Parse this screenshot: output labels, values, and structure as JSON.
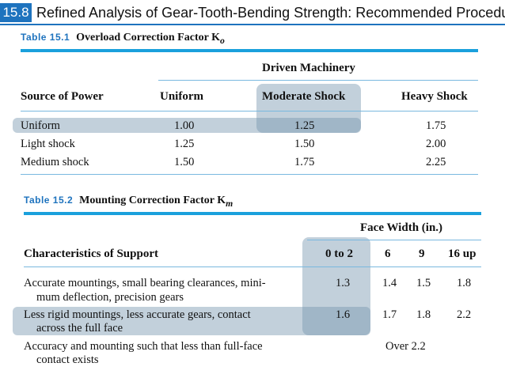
{
  "header": {
    "section_number": "15.8",
    "title": "Refined Analysis of Gear-Tooth-Bending Strength: Recommended Procedure"
  },
  "table1": {
    "label": "Table 15.1",
    "title": "Overload Correction Factor K",
    "title_sub": "o",
    "group_header": "Driven Machinery",
    "row_header": "Source of Power",
    "columns": [
      "Uniform",
      "Moderate Shock",
      "Heavy Shock"
    ],
    "rows": [
      {
        "source": "Uniform",
        "values": [
          "1.00",
          "1.25",
          "1.75"
        ]
      },
      {
        "source": "Light shock",
        "values": [
          "1.25",
          "1.50",
          "2.00"
        ]
      },
      {
        "source": "Medium shock",
        "values": [
          "1.50",
          "1.75",
          "2.25"
        ]
      }
    ]
  },
  "table2": {
    "label": "Table 15.2",
    "title": "Mounting Correction Factor K",
    "title_sub": "m",
    "group_header": "Face Width (in.)",
    "row_header": "Characteristics of Support",
    "columns": [
      "0 to 2",
      "6",
      "9",
      "16 up"
    ],
    "rows": [
      {
        "line1": "Accurate mountings, small bearing clearances, mini-",
        "line2": "mum deflection, precision gears",
        "values": [
          "1.3",
          "1.4",
          "1.5",
          "1.8"
        ]
      },
      {
        "line1": "Less rigid mountings, less accurate gears, contact",
        "line2": "across the full face",
        "values": [
          "1.6",
          "1.7",
          "1.8",
          "2.2"
        ]
      },
      {
        "line1": "Accuracy and mounting such that less than full-face",
        "line2": "contact exists",
        "over_value": "Over 2.2"
      }
    ]
  },
  "colors": {
    "accent": "#1e73be",
    "rule": "#1aa0dc",
    "highlight": "#7896af"
  }
}
